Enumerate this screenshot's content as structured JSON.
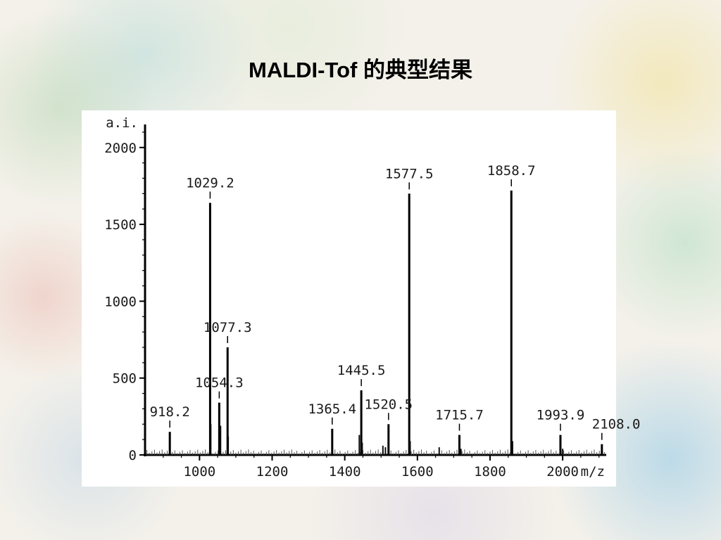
{
  "title": "MALDI-Tof 的典型结果",
  "chart_data": {
    "type": "bar",
    "ylabel": "a.i.",
    "xlabel": "m/z",
    "xlim": [
      850,
      2120
    ],
    "ylim": [
      0,
      2150
    ],
    "x_ticks": [
      1000,
      1200,
      1400,
      1600,
      1800,
      2000
    ],
    "y_ticks": [
      0,
      500,
      1000,
      1500,
      2000
    ],
    "labeled_peaks": [
      {
        "x": 918.2,
        "y": 150,
        "label": "918.2"
      },
      {
        "x": 1029.2,
        "y": 1640,
        "label": "1029.2"
      },
      {
        "x": 1054.3,
        "y": 340,
        "label": "1054.3"
      },
      {
        "x": 1077.3,
        "y": 700,
        "label": "1077.3"
      },
      {
        "x": 1365.4,
        "y": 170,
        "label": "1365.4"
      },
      {
        "x": 1445.5,
        "y": 420,
        "label": "1445.5"
      },
      {
        "x": 1520.5,
        "y": 200,
        "label": "1520.5"
      },
      {
        "x": 1577.5,
        "y": 1700,
        "label": "1577.5"
      },
      {
        "x": 1715.7,
        "y": 130,
        "label": "1715.7"
      },
      {
        "x": 1858.7,
        "y": 1720,
        "label": "1858.7"
      },
      {
        "x": 1993.9,
        "y": 130,
        "label": "1993.9"
      },
      {
        "x": 2108.0,
        "y": 70,
        "label": "2108.0"
      }
    ],
    "minor_peaks": [
      {
        "x": 1031,
        "y": 200
      },
      {
        "x": 1058,
        "y": 190
      },
      {
        "x": 1079,
        "y": 120
      },
      {
        "x": 1440,
        "y": 130
      },
      {
        "x": 1448,
        "y": 80
      },
      {
        "x": 1505,
        "y": 60
      },
      {
        "x": 1512,
        "y": 50
      },
      {
        "x": 1580,
        "y": 90
      },
      {
        "x": 1660,
        "y": 50
      },
      {
        "x": 1720,
        "y": 40
      },
      {
        "x": 1862,
        "y": 90
      },
      {
        "x": 2000,
        "y": 40
      }
    ]
  }
}
